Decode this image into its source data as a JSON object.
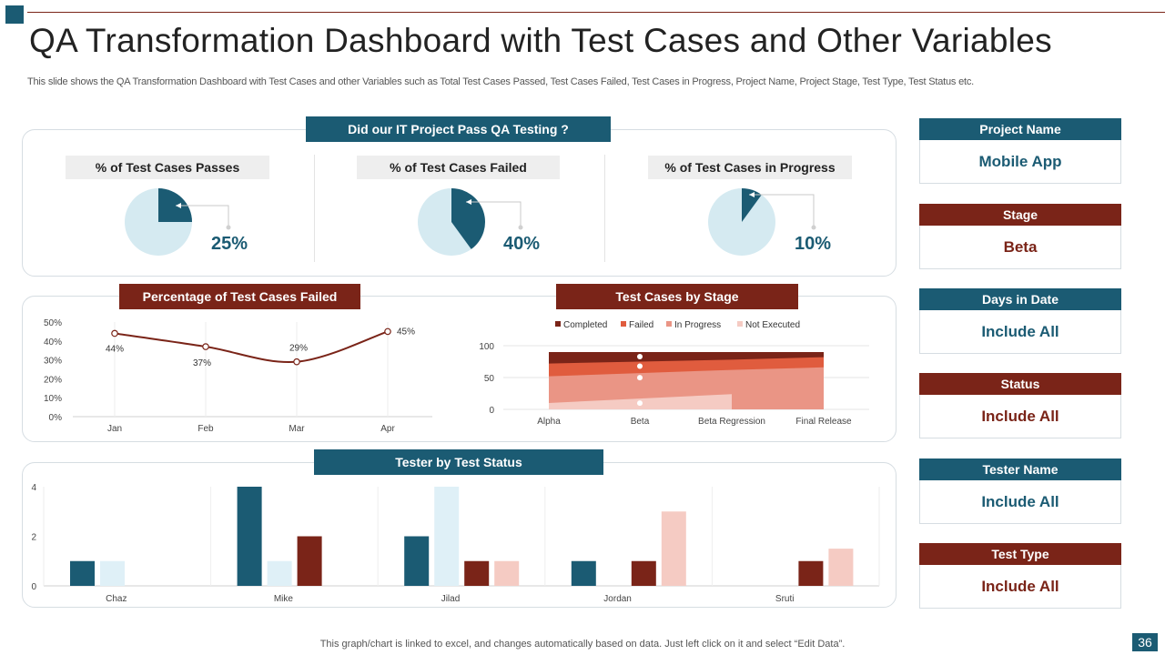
{
  "header": {
    "title": "QA Transformation Dashboard with Test Cases and Other Variables",
    "subtitle": "This slide shows the QA Transformation Dashboard with Test Cases and other Variables such as Total Test Cases Passed, Test Cases Failed, Test Cases in Progress, Project Name, Project Stage, Test Type,  Test Status etc."
  },
  "qa_panel": {
    "banner": "Did our IT Project Pass QA Testing ?",
    "pies": [
      {
        "label": "% of Test Cases Passes",
        "pct_label": "25%",
        "value": 25
      },
      {
        "label": "% of Test Cases Failed",
        "pct_label": "40%",
        "value": 40
      },
      {
        "label": "% of Test Cases in Progress",
        "pct_label": "10%",
        "value": 10
      }
    ]
  },
  "failed_panel": {
    "banner": "Percentage of Test Cases Failed"
  },
  "stage_panel": {
    "banner": "Test Cases by Stage"
  },
  "tester_panel": {
    "banner": "Tester by Test Status"
  },
  "sidebar": {
    "items": [
      {
        "label": "Project Name",
        "value": "Mobile App"
      },
      {
        "label": "Stage",
        "value": "Beta"
      },
      {
        "label": "Days in Date",
        "value": "Include All"
      },
      {
        "label": "Status",
        "value": "Include All"
      },
      {
        "label": "Tester Name",
        "value": "Include All"
      },
      {
        "label": "Test Type",
        "value": "Include All"
      }
    ]
  },
  "footer": {
    "note": "This graph/chart is linked to excel,  and changes automatically based on data. Just left click on it and select “Edit Data”.",
    "page": "36"
  },
  "colors": {
    "teal": "#1b5b73",
    "maroon": "#7a2418",
    "light_blue": "#d5eaf1",
    "failed": "#e05c3e",
    "in_progress": "#ea9585",
    "not_executed": "#f5cbc3",
    "pale_blue": "#dff0f7",
    "pale_pink": "#f5cbc3"
  },
  "chart_data": [
    {
      "type": "line",
      "x": [
        "Jan",
        "Feb",
        "Mar",
        "Apr"
      ],
      "values": [
        44,
        37,
        29,
        45
      ],
      "data_labels": [
        "44%",
        "37%",
        "29%",
        "45%"
      ],
      "yticks": [
        "0%",
        "10%",
        "20%",
        "30%",
        "40%",
        "50%"
      ],
      "ylim": [
        0,
        50
      ]
    },
    {
      "type": "area",
      "categories": [
        "Alpha",
        "Beta",
        "Beta Regression",
        "Final Release"
      ],
      "yticks": [
        "0",
        "50",
        "100"
      ],
      "ylim": [
        0,
        100
      ],
      "series": [
        {
          "name": "Completed",
          "values": [
            90,
            90,
            90,
            90
          ]
        },
        {
          "name": "Failed",
          "values": [
            72,
            75,
            78,
            82
          ]
        },
        {
          "name": "In Progress",
          "values": [
            52,
            57,
            62,
            66
          ]
        },
        {
          "name": "Not Executed",
          "values": [
            10,
            17,
            24,
            0
          ]
        }
      ]
    },
    {
      "type": "bar",
      "categories": [
        "Chaz",
        "Mike",
        "Jilad",
        "Jordan",
        "Sruti"
      ],
      "yticks": [
        "0",
        "2",
        "4"
      ],
      "ylim": [
        0,
        4
      ],
      "series": [
        {
          "values": [
            1,
            4,
            2,
            1,
            0
          ]
        },
        {
          "values": [
            1,
            1,
            4,
            0,
            0
          ]
        },
        {
          "values": [
            0,
            2,
            1,
            1,
            1
          ]
        },
        {
          "values": [
            0,
            0,
            1,
            3,
            1.5
          ]
        }
      ]
    }
  ]
}
